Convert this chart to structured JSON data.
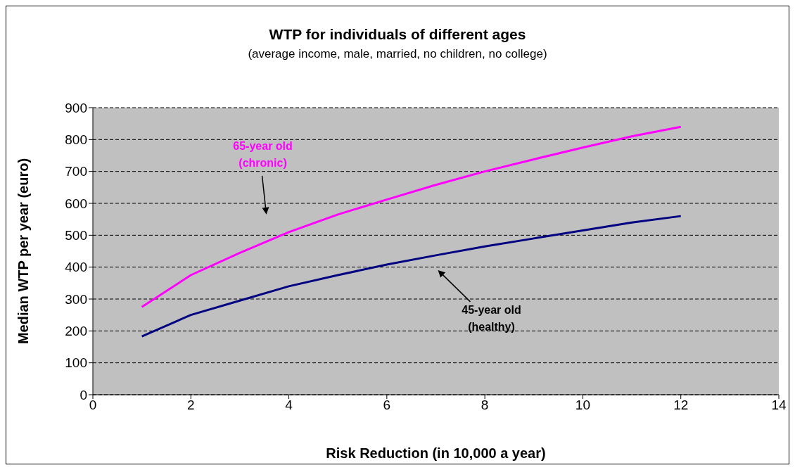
{
  "chart_data": {
    "type": "line",
    "title": "WTP for individuals of different ages",
    "subtitle": "(average income, male, married, no children, no college)",
    "xlabel": "Risk Reduction (in 10,000 a year)",
    "ylabel": "Median WTP per year (euro)",
    "x": [
      1,
      2,
      3,
      4,
      5,
      6,
      7,
      8,
      9,
      10,
      11,
      12
    ],
    "series": [
      {
        "color": "#ff00ff",
        "values": [
          275,
          375,
          445,
          510,
          565,
          612,
          658,
          700,
          738,
          775,
          810,
          840
        ]
      },
      {
        "color": "#000080",
        "values": [
          183,
          250,
          295,
          340,
          375,
          408,
          437,
          465,
          490,
          515,
          540,
          560
        ]
      }
    ],
    "annotations": [
      "65-year old\n(chronic)",
      "45-year old\n(healthy)"
    ],
    "xlim": [
      0,
      14
    ],
    "xticks": [
      0,
      2,
      4,
      6,
      8,
      10,
      12,
      14
    ],
    "ylim": [
      0,
      900
    ],
    "yticks": [
      0,
      100,
      200,
      300,
      400,
      500,
      600,
      700,
      800,
      900
    ],
    "grid": "y",
    "legend": false,
    "marker": "none",
    "line_style": "solid"
  }
}
